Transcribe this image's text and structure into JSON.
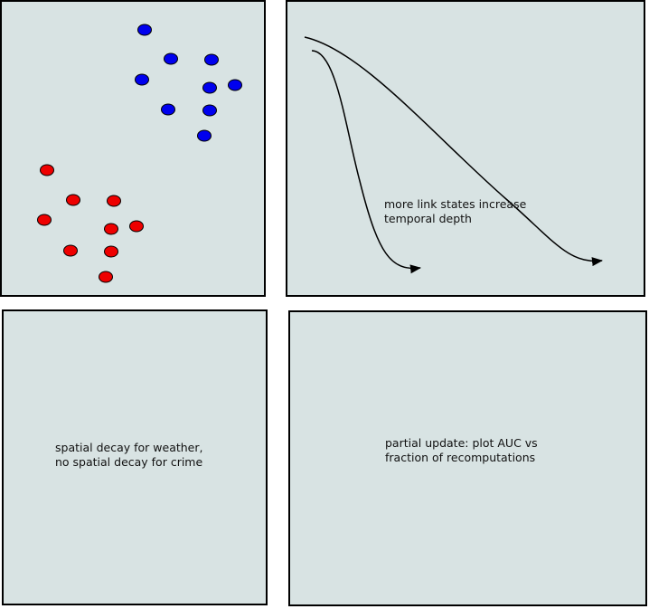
{
  "panels": [
    {
      "lines": [
        "more link states increase",
        "temporal depth"
      ]
    },
    {
      "lines": [
        "spatial decay for weather,",
        "no spatial decay for crime"
      ]
    },
    {
      "lines": [
        "partial update: plot AUC vs",
        "fraction of recomputations"
      ]
    }
  ]
}
